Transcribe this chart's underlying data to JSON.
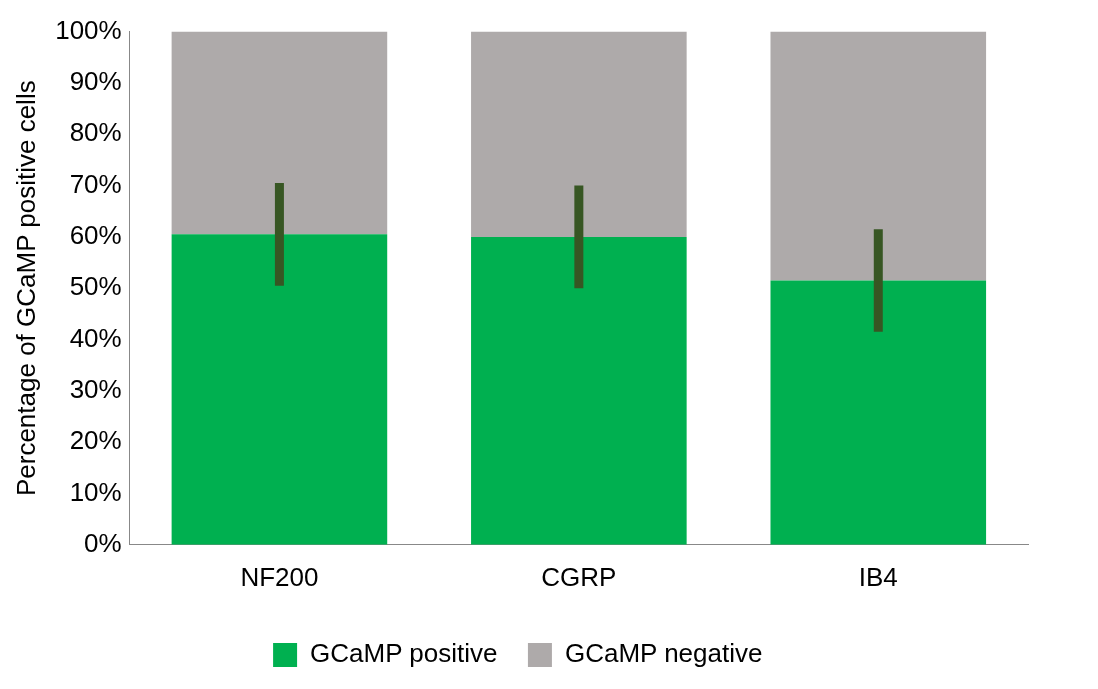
{
  "chart_data": {
    "type": "bar",
    "ylabel": "Percentage of GCaMP positive cells",
    "categories": [
      "NF200",
      "CGRP",
      "IB4"
    ],
    "stacked": true,
    "series": [
      {
        "name": "GCaMP positive",
        "color": "#00b050",
        "values": [
          60.5,
          60,
          51.5
        ],
        "errors": [
          10,
          10,
          10
        ]
      },
      {
        "name": "GCaMP negative",
        "color": "#aeaaaa",
        "values": [
          39.5,
          40,
          48.5
        ]
      }
    ],
    "ylim": [
      0,
      100
    ],
    "yticks": [
      {
        "value": 0,
        "label": "0%"
      },
      {
        "value": 10,
        "label": "10%"
      },
      {
        "value": 20,
        "label": "20%"
      },
      {
        "value": 30,
        "label": "30%"
      },
      {
        "value": 40,
        "label": "40%"
      },
      {
        "value": 50,
        "label": "50%"
      },
      {
        "value": 60,
        "label": "60%"
      },
      {
        "value": 70,
        "label": "70%"
      },
      {
        "value": 80,
        "label": "80%"
      },
      {
        "value": 90,
        "label": "90%"
      },
      {
        "value": 100,
        "label": "100%"
      }
    ],
    "grid": false,
    "legend": "bottom"
  }
}
